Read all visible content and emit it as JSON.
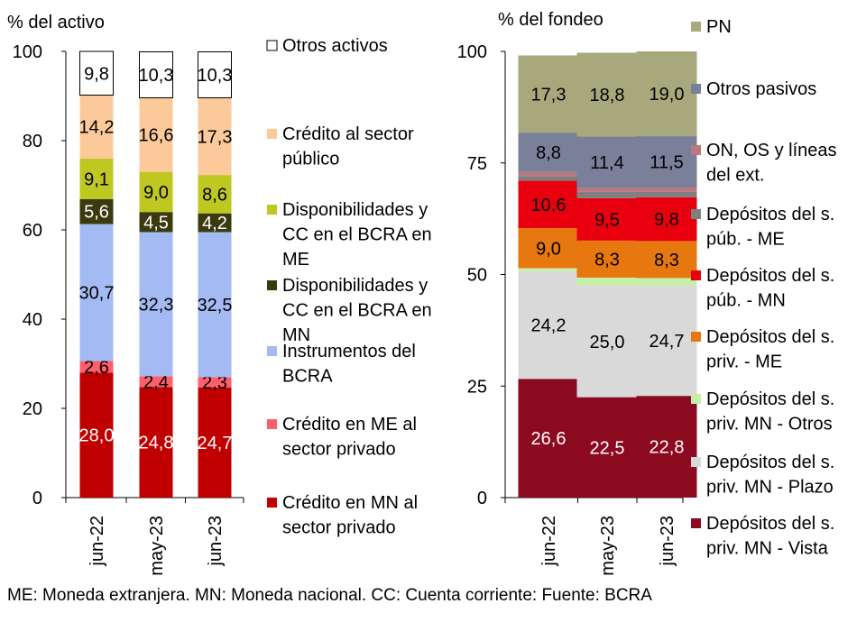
{
  "footnote": "ME: Moneda extranjera. MN: Moneda nacional. CC: Cuenta corriente: Fuente: BCRA",
  "chart_data": [
    {
      "type": "bar",
      "stacked": true,
      "title": "% del activo",
      "ylim": [
        0,
        100
      ],
      "yticks": [
        "0",
        "20",
        "40",
        "60",
        "80",
        "100"
      ],
      "categories": [
        "jun-22",
        "may-23",
        "jun-23"
      ],
      "legend_position": "right",
      "series": [
        {
          "name": "Crédito en MN al sector privado",
          "lines": [
            "Crédito en MN al",
            "sector privado"
          ],
          "color": "#C00000",
          "label_color": "#ffffff",
          "values": [
            28.0,
            24.8,
            24.7
          ],
          "labels": [
            "28,0",
            "24,8",
            "24,7"
          ]
        },
        {
          "name": "Crédito en ME al sector privado",
          "lines": [
            "Crédito en ME al",
            "sector privado"
          ],
          "color": "#FF5F6D",
          "label_color": "#000000",
          "values": [
            2.6,
            2.4,
            2.3
          ],
          "labels": [
            "2,6",
            "2,4",
            "2,3"
          ]
        },
        {
          "name": "Instrumentos del BCRA",
          "lines": [
            "Instrumentos del",
            "BCRA"
          ],
          "color": "#A3BBF2",
          "label_color": "#000000",
          "values": [
            30.7,
            32.3,
            32.5
          ],
          "labels": [
            "30,7",
            "32,3",
            "32,5"
          ]
        },
        {
          "name": "Disponibilidades y CC en el BCRA en MN",
          "lines": [
            "Disponibilidades y",
            "CC en el BCRA en",
            "MN"
          ],
          "color": "#3A3A0E",
          "label_color": "#ffffff",
          "values": [
            5.6,
            4.5,
            4.2
          ],
          "labels": [
            "5,6",
            "4,5",
            "4,2"
          ]
        },
        {
          "name": "Disponibilidades y CC en el BCRA en ME",
          "lines": [
            "Disponibilidades y",
            "CC en el BCRA en",
            "ME"
          ],
          "color": "#BFC721",
          "label_color": "#000000",
          "values": [
            9.1,
            9.0,
            8.6
          ],
          "labels": [
            "9,1",
            "9,0",
            "8,6"
          ]
        },
        {
          "name": "Crédito al sector público",
          "lines": [
            "Crédito al sector",
            "público"
          ],
          "color": "#FCC99A",
          "label_color": "#000000",
          "values": [
            14.2,
            16.6,
            17.3
          ],
          "labels": [
            "14,2",
            "16,6",
            "17,3"
          ]
        },
        {
          "name": "Otros activos",
          "lines": [
            "Otros activos"
          ],
          "color": "#ffffff",
          "label_color": "#000000",
          "outline": true,
          "values": [
            9.8,
            10.3,
            10.3
          ],
          "labels": [
            "9,8",
            "10,3",
            "10,3"
          ]
        }
      ]
    },
    {
      "type": "bar",
      "stacked": true,
      "title": "% del fondeo",
      "ylim": [
        0,
        100
      ],
      "yticks": [
        "0",
        "25",
        "50",
        "75",
        "100"
      ],
      "categories": [
        "jun-22",
        "may-23",
        "jun-23"
      ],
      "legend_position": "right",
      "series": [
        {
          "name": "Depósitos del s. priv. MN - Vista",
          "lines": [
            "Depósitos del s.",
            "priv. MN - Vista"
          ],
          "color": "#8B0A1F",
          "label_color": "#ffffff",
          "values": [
            26.6,
            22.5,
            22.8
          ],
          "labels": [
            "26,6",
            "22,5",
            "22,8"
          ]
        },
        {
          "name": "Depósitos del s. priv. MN - Plazo",
          "lines": [
            "Depósitos del s.",
            "priv. MN - Plazo"
          ],
          "color": "#D9D9D9",
          "label_color": "#000000",
          "values": [
            24.2,
            25.0,
            24.7
          ],
          "labels": [
            "24,2",
            "25,0",
            "24,7"
          ]
        },
        {
          "name": "Depósitos del s. priv. MN - Otros",
          "lines": [
            "Depósitos del s.",
            "priv. MN - Otros"
          ],
          "color": "#C6EFA8",
          "label_color": "#000000",
          "values": [
            0.6,
            1.8,
            1.7
          ],
          "labels": [
            "",
            "",
            ""
          ]
        },
        {
          "name": "Depósitos del s. priv. - ME",
          "lines": [
            "Depósitos del s.",
            "priv. - ME"
          ],
          "color": "#E6780F",
          "label_color": "#000000",
          "values": [
            9.0,
            8.3,
            8.3
          ],
          "labels": [
            "9,0",
            "8,3",
            "8,3"
          ]
        },
        {
          "name": "Depósitos del s. púb. - MN",
          "lines": [
            "Depósitos del s.",
            "púb. - MN"
          ],
          "color": "#E8000E",
          "label_color": "#000000",
          "values": [
            10.6,
            9.5,
            9.8
          ],
          "labels": [
            "10,6",
            "9,5",
            "9,8"
          ]
        },
        {
          "name": "Depósitos del s. púb. - ME",
          "lines": [
            "Depósitos del s.",
            "púb. - ME"
          ],
          "color": "#7F7F7F",
          "label_color": "#000000",
          "values": [
            1.0,
            1.4,
            1.2
          ],
          "labels": [
            "",
            "",
            ""
          ]
        },
        {
          "name": "ON, OS y líneas del ext.",
          "lines": [
            "ON, OS y líneas",
            "del ext."
          ],
          "color": "#B8787E",
          "label_color": "#000000",
          "values": [
            1.0,
            1.0,
            1.0
          ],
          "labels": [
            "",
            "",
            ""
          ]
        },
        {
          "name": "Otros pasivos",
          "lines": [
            "Otros pasivos"
          ],
          "color": "#7A7F9A",
          "label_color": "#000000",
          "values": [
            8.8,
            11.4,
            11.5
          ],
          "labels": [
            "8,8",
            "11,4",
            "11,5"
          ]
        },
        {
          "name": "PN",
          "lines": [
            "PN"
          ],
          "color": "#A7A97C",
          "label_color": "#000000",
          "values": [
            17.3,
            18.8,
            19.0
          ],
          "labels": [
            "17,3",
            "18,8",
            "19,0"
          ]
        }
      ]
    }
  ]
}
